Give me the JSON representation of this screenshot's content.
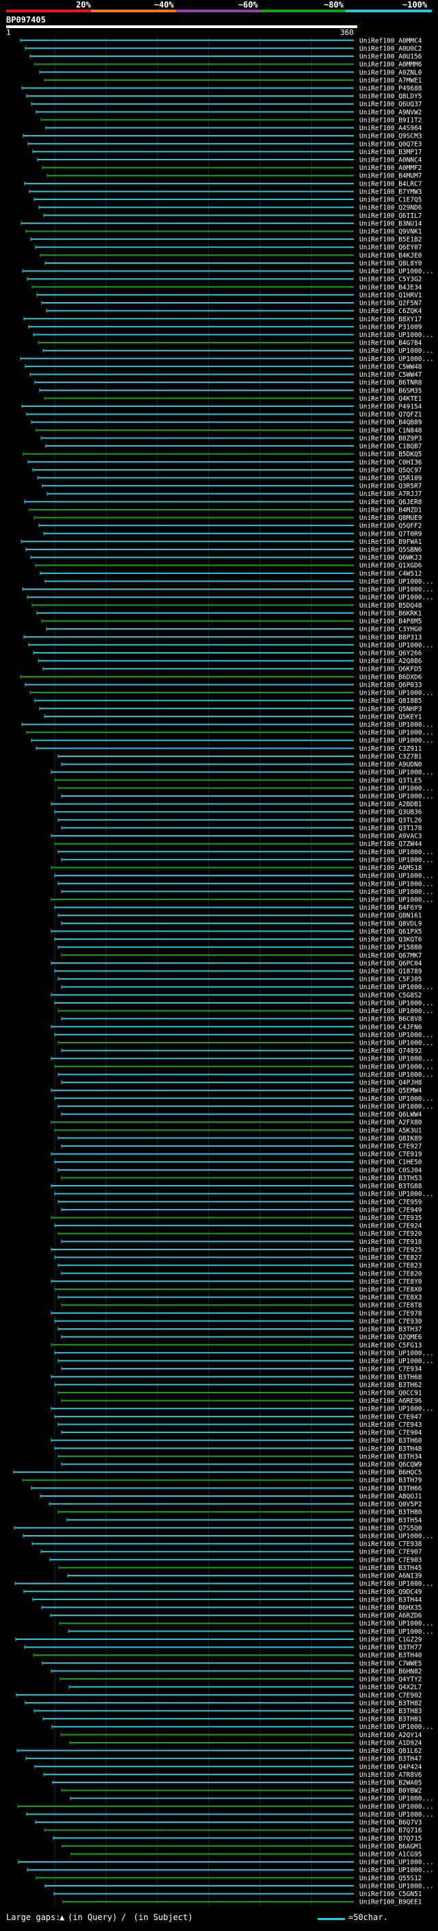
{
  "legend": {
    "labels": [
      "20%",
      "~40%",
      "~60%",
      "~80%",
      "~100%"
    ],
    "colors": [
      "#e8141e",
      "#ec7a1c",
      "#8d3fa6",
      "#14a214",
      "#27c5d6"
    ]
  },
  "query": {
    "id": "BP097405",
    "start": "1",
    "end": "360"
  },
  "footer": {
    "gaps_label": "Large gaps:",
    "gap_query": "(in Query)",
    "gap_sep": "/",
    "gap_subject": "(in Subject)",
    "scale_label": "=50char."
  },
  "hits": [
    "UniRef100_A0MMC4",
    "UniRef100_A0U0C2",
    "UniRef100_A0U156",
    "UniRef100_A0MMM6",
    "UniRef100_A0ZNL0",
    "UniRef100_A7MWE1",
    "UniRef100_P49688",
    "UniRef100_Q8LDY5",
    "UniRef100_Q6UQ37",
    "UniRef100_A9NVW2",
    "UniRef100_B9I1T2",
    "UniRef100_A4S964",
    "UniRef100_Q9SCM3",
    "UniRef100_Q0Q7E3",
    "UniRef100_B3MP17",
    "UniRef100_A0NNC4",
    "UniRef100_A0MMF2",
    "UniRef100_B4MUM7",
    "UniRef100_B4LRC7",
    "UniRef100_B7YMW3",
    "UniRef100_C1E7Q5",
    "UniRef100_Q29ND6",
    "UniRef100_Q6IIL7",
    "UniRef100_B3NU14",
    "UniRef100_Q9VNK1",
    "UniRef100_B5E1B2",
    "UniRef100_Q6EY07",
    "UniRef100_B4KJE0",
    "UniRef100_Q8L8Y0",
    "UniRef100_UP1000...",
    "UniRef100_C5Y3G2",
    "UniRef100_B4JE34",
    "UniRef100_Q1HRV1",
    "UniRef100_Q2F5N7",
    "UniRef100_C6ZQK4",
    "UniRef100_B8XY17",
    "UniRef100_P31009",
    "UniRef100_UP1000...",
    "UniRef100_B4G7B4",
    "UniRef100_UP1000...",
    "UniRef100_UP1000...",
    "UniRef100_C5WW48",
    "UniRef100_C5WW47",
    "UniRef100_B6TNR8",
    "UniRef100_B6SM35",
    "UniRef100_Q4KTE1",
    "UniRef100_P49154",
    "UniRef100_Q7QFZ1",
    "UniRef100_B4QB89",
    "UniRef100_C1N848",
    "UniRef100_B0Z9P3",
    "UniRef100_C1BQB7",
    "UniRef100_B5DKQ5",
    "UniRef100_C0HI36",
    "UniRef100_Q5QC97",
    "UniRef100_Q5R109",
    "UniRef100_Q3R5R7",
    "UniRef100_A7RJJ7",
    "UniRef100_Q6JER8",
    "UniRef100_B4MZD1",
    "UniRef100_Q8MUE9",
    "UniRef100_Q5QFF2",
    "UniRef100_Q7T0R9",
    "UniRef100_B9FWA1",
    "UniRef100_Q5SBN6",
    "UniRef100_Q6WKJ3",
    "UniRef100_Q1XGD6",
    "UniRef100_C4W512",
    "UniRef100_UP1000...",
    "UniRef100_UP1000...",
    "UniRef100_UP1000...",
    "UniRef100_B5DQ48",
    "UniRef100_B6KRK1",
    "UniRef100_B4P8M5",
    "UniRef100_C3YHG0",
    "UniRef100_B8P313",
    "UniRef100_UP1000...",
    "UniRef100_Q6Y266",
    "UniRef100_A2Q8B6",
    "UniRef100_Q6KFD5",
    "UniRef100_B6DXD6",
    "UniRef100_Q6P033",
    "UniRef100_UP1000...",
    "UniRef100_Q8I8B5",
    "UniRef100_Q5NHP3",
    "UniRef100_Q5KEY1",
    "UniRef100_UP1000...",
    "UniRef100_UP1000...",
    "UniRef100_UP1000...",
    "UniRef100_C3Z911",
    "UniRef100_C3Z7B1",
    "UniRef100_A9UDN0",
    "UniRef100_UP1000...",
    "UniRef100_Q3TLE5",
    "UniRef100_UP1000...",
    "UniRef100_UP1000...",
    "UniRef100_A2BDB1",
    "UniRef100_Q3UB36",
    "UniRef100_Q3TL26",
    "UniRef100_Q3T178",
    "UniRef100_A9VAC3",
    "UniRef100_Q7ZW44",
    "UniRef100_UP1000...",
    "UniRef100_UP1000...",
    "UniRef100_A6MS18",
    "UniRef100_UP1000...",
    "UniRef100_UP1000...",
    "UniRef100_UP1000...",
    "UniRef100_UP1000...",
    "UniRef100_B4F6Y9",
    "UniRef100_Q8N161",
    "UniRef100_Q8VDL9",
    "UniRef100_Q61PX5",
    "UniRef100_Q3KQT6",
    "UniRef100_P15880",
    "UniRef100_Q67MK7",
    "UniRef100_Q6PC04",
    "UniRef100_Q18789",
    "UniRef100_C5FJ05",
    "UniRef100_UP1000...",
    "UniRef100_C5G8S2",
    "UniRef100_UP1000...",
    "UniRef100_UP1000...",
    "UniRef100_B6C8V8",
    "UniRef100_C4JFN6",
    "UniRef100_UP1000...",
    "UniRef100_UP1000...",
    "UniRef100_Q74892",
    "UniRef100_UP1000...",
    "UniRef100_UP1000...",
    "UniRef100_UP1000...",
    "UniRef100_Q4PJH8",
    "UniRef100_Q5EMW4",
    "UniRef100_UP1000...",
    "UniRef100_UP1000...",
    "UniRef100_Q6LWW4",
    "UniRef100_A2FX80",
    "UniRef100_A5K3U1",
    "UniRef100_Q8IK89",
    "UniRef100_C7E927",
    "UniRef100_C7E919",
    "UniRef100_C1HE50",
    "UniRef100_C0SJ04",
    "UniRef100_B3TH53",
    "UniRef100_B3TG88",
    "UniRef100_UP1000...",
    "UniRef100_C7E959",
    "UniRef100_C7E949",
    "UniRef100_C7E935",
    "UniRef100_C7E924",
    "UniRef100_C7E920",
    "UniRef100_C7E918",
    "UniRef100_C7E925",
    "UniRef100_C7E827",
    "UniRef100_C7E823",
    "UniRef100_C7E820",
    "UniRef100_C7E8Y0",
    "UniRef100_C7E8X0",
    "UniRef100_C7E8X3",
    "UniRef100_C7E8T8",
    "UniRef100_C7E978",
    "UniRef100_C7E930",
    "UniRef100_B3TH37",
    "UniRef100_Q2QME6",
    "UniRef100_C5FG13",
    "UniRef100_UP1000...",
    "UniRef100_UP1000...",
    "UniRef100_C7E934",
    "UniRef100_B3TH68",
    "UniRef100_B3TH62",
    "UniRef100_Q0CC91",
    "UniRef100_A6RE96",
    "UniRef100_UP1000...",
    "UniRef100_C7E947",
    "UniRef100_C7E943",
    "UniRef100_C7E904",
    "UniRef100_B3TH60",
    "UniRef100_B3TH48",
    "UniRef100_B3TH34",
    "UniRef100_Q6CQW9",
    "UniRef100_B6HQC5",
    "UniRef100_B3TH79",
    "UniRef100_B3TH66",
    "UniRef100_A8QOJ1",
    "UniRef100_Q0V5P2",
    "UniRef100_B3TH80",
    "UniRef100_B3TH54",
    "UniRef100_Q7S5Q0",
    "UniRef100_UP1000...",
    "UniRef100_C7E938",
    "UniRef100_C7E907",
    "UniRef100_C7E903",
    "UniRef100_B3TH45",
    "UniRef100_A6NI39",
    "UniRef100_UP1000...",
    "UniRef100_Q9DC49",
    "UniRef100_B3TH44",
    "UniRef100_B6HX35",
    "UniRef100_A6RZD6",
    "UniRef100_UP1000...",
    "UniRef100_UP1000...",
    "UniRef100_C1GZ29",
    "UniRef100_B3TH77",
    "UniRef100_B3TH40",
    "UniRef100_C7WWE5",
    "UniRef100_B6HN82",
    "UniRef100_Q4YTY2",
    "UniRef100_Q4X2L7",
    "UniRef100_C7E902",
    "UniRef100_B3TH82",
    "UniRef100_B3TH83",
    "UniRef100_B3TH81",
    "UniRef100_UP1000...",
    "UniRef100_A2QY14",
    "UniRef100_A1D924",
    "UniRef100_Q81L62",
    "UniRef100_B3TH47",
    "UniRef100_Q4P424",
    "UniRef100_A7R8V6",
    "UniRef100_B2WA05",
    "UniRef100_B0YBW2",
    "UniRef100_UP1000...",
    "UniRef100_UP1000...",
    "UniRef100_UP1000...",
    "UniRef100_B6Q7V3",
    "UniRef100_B7Q716",
    "UniRef100_B7Q715",
    "UniRef100_B6AGM1",
    "UniRef100_A1CG95",
    "UniRef100_UP1000...",
    "UniRef100_UP1000...",
    "UniRef100_Q55S12",
    "UniRef100_UP1000...",
    "UniRef100_C5GN51",
    "UniRef100_B9QEE1"
  ]
}
